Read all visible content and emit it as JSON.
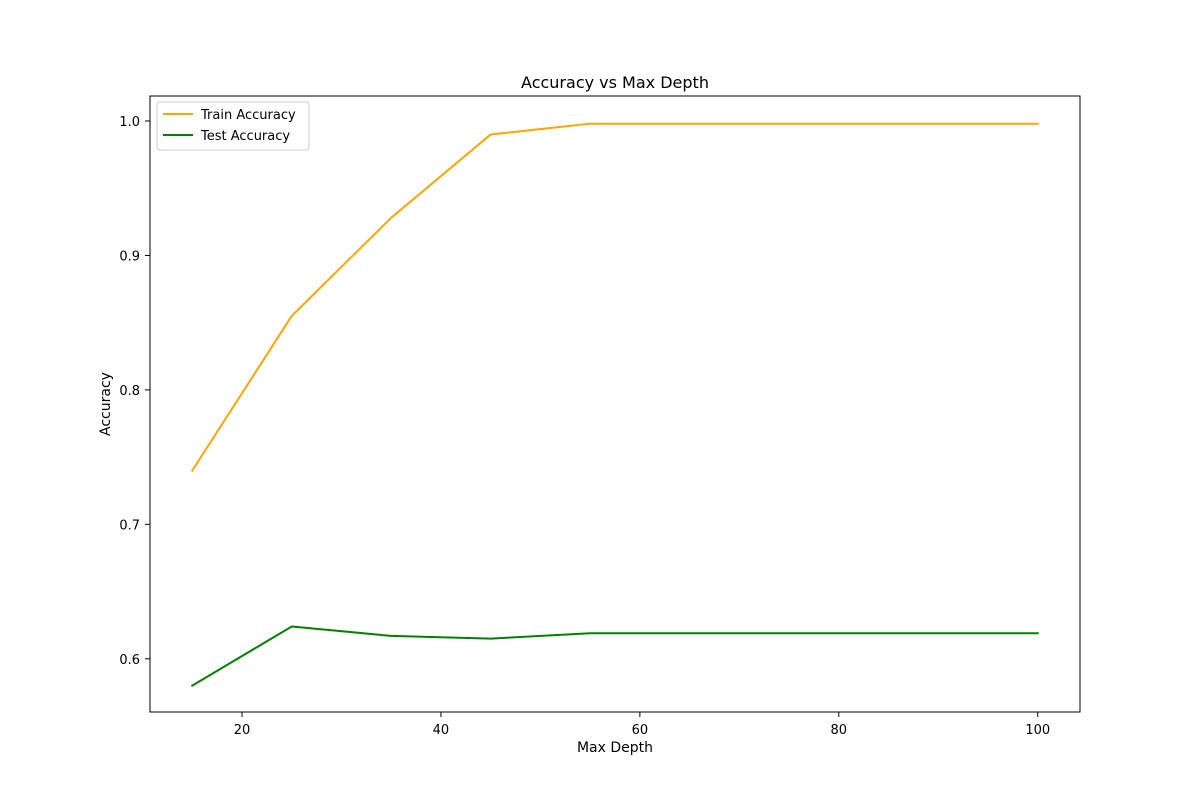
{
  "chart_data": {
    "type": "line",
    "title": "Accuracy vs Max Depth",
    "xlabel": "Max Depth",
    "ylabel": "Accuracy",
    "xlim": [
      10.75,
      104.25
    ],
    "ylim": [
      0.5604,
      1.0186
    ],
    "xticks": [
      20,
      40,
      60,
      80,
      100
    ],
    "yticks": [
      0.6,
      0.7,
      0.8,
      0.9,
      1.0
    ],
    "x": [
      15,
      25,
      35,
      45,
      55,
      65,
      75,
      85,
      95,
      100
    ],
    "series": [
      {
        "name": "Train Accuracy",
        "color": "#ffa500",
        "values": [
          0.74,
          0.855,
          0.928,
          0.99,
          0.998,
          0.998,
          0.998,
          0.998,
          0.998,
          0.998
        ]
      },
      {
        "name": "Test Accuracy",
        "color": "#008000",
        "values": [
          0.58,
          0.624,
          0.617,
          0.615,
          0.619,
          0.619,
          0.619,
          0.619,
          0.619,
          0.619
        ]
      }
    ],
    "legend_position": "upper-left",
    "grid": false
  }
}
